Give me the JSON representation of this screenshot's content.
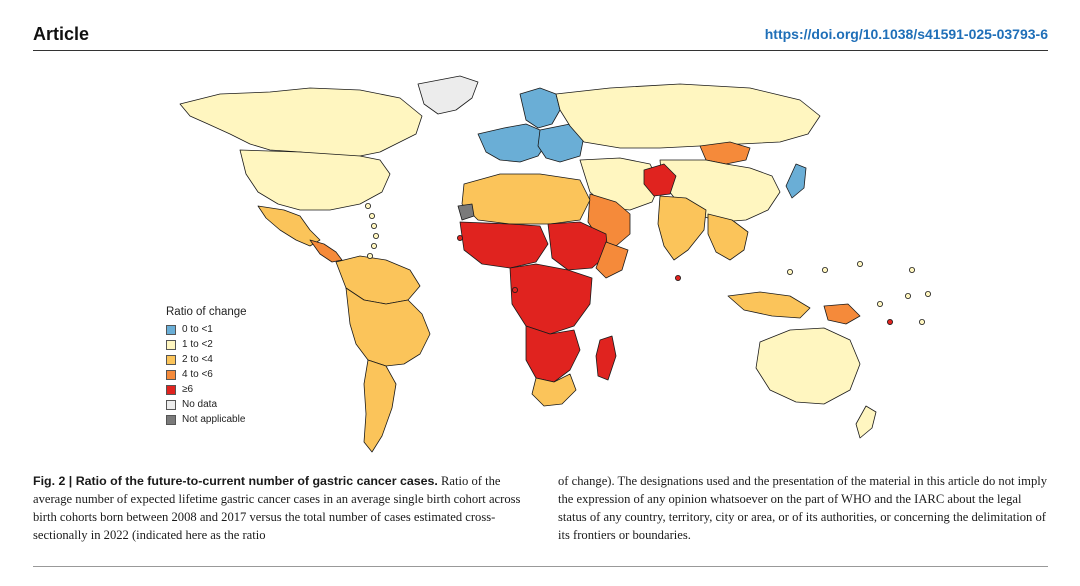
{
  "header": {
    "section": "Article",
    "doi": "https://doi.org/10.1038/s41591-025-03793-6"
  },
  "legend": {
    "title": "Ratio of change",
    "items": [
      {
        "label": "0 to <1",
        "color": "#6aaed6"
      },
      {
        "label": "1 to <2",
        "color": "#fff6c0"
      },
      {
        "label": "2 to <4",
        "color": "#fbc45a"
      },
      {
        "label": "4 to <6",
        "color": "#f58a3a"
      },
      {
        "label": "≥6",
        "color": "#e0231f"
      },
      {
        "label": "No data",
        "color": "#ececec"
      },
      {
        "label": "Not applicable",
        "color": "#7a7a7a"
      }
    ]
  },
  "caption": {
    "figure_label": "Fig. 2 | Ratio of the future-to-current number of gastric cancer cases.",
    "left_text": " Ratio of the average number of expected lifetime gastric cancer cases in an average single birth cohort across birth cohorts born between 2008 and 2017 versus the total number of cases estimated cross-sectionally in 2022 (indicated here as the ratio",
    "right_text": "of change). The designations used and the presentation of the material in this article do not imply the expression of any opinion whatsoever on the part of WHO and the IARC about the legal status of any country, territory, city or area, or of its authorities, or concerning the delimitation of its frontiers or boundaries."
  },
  "colors": {
    "lt1": "#6aaed6",
    "c1to2": "#fff6c0",
    "c2to4": "#fbc45a",
    "c4to6": "#f58a3a",
    "ge6": "#e0231f",
    "nodata": "#ececec",
    "na": "#7a7a7a",
    "border": "#1a1a1a"
  }
}
